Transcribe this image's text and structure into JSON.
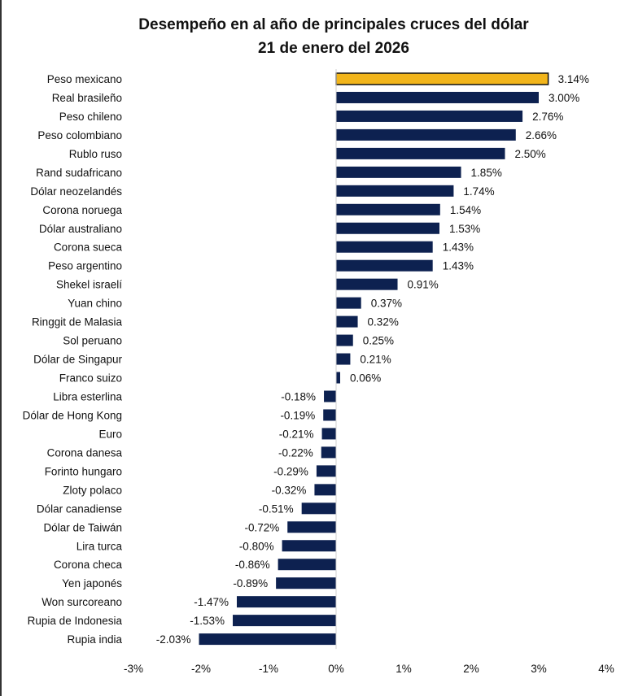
{
  "chart_data": {
    "type": "bar",
    "orientation": "horizontal",
    "title": "Desempeño en al año de principales cruces del dólar",
    "subtitle": "21 de enero del 2026",
    "xlabel": "",
    "ylabel": "",
    "xlim": [
      -3,
      4
    ],
    "xticks": [
      "-3%",
      "-2%",
      "-1%",
      "0%",
      "1%",
      "2%",
      "3%",
      "4%"
    ],
    "grid": false,
    "highlight_color": "#F2B51B",
    "bar_color": "#0D2150",
    "categories": [
      "Peso mexicano",
      "Real brasileño",
      "Peso chileno",
      "Peso colombiano",
      "Rublo ruso",
      "Rand sudafricano",
      "Dólar neozelandés",
      "Corona noruega",
      "Dólar australiano",
      "Corona sueca",
      "Peso argentino",
      "Shekel israelí",
      "Yuan chino",
      "Ringgit de Malasia",
      "Sol peruano",
      "Dólar de Singapur",
      "Franco suizo",
      "Libra esterlina",
      "Dólar de Hong Kong",
      "Euro",
      "Corona danesa",
      "Forinto hungaro",
      "Zloty polaco",
      "Dólar canadiense",
      "Dólar de Taiwán",
      "Lira turca",
      "Corona checa",
      "Yen japonés",
      "Won surcoreano",
      "Rupia de Indonesia",
      "Rupia india"
    ],
    "values": [
      3.14,
      3.0,
      2.76,
      2.66,
      2.5,
      1.85,
      1.74,
      1.54,
      1.53,
      1.43,
      1.43,
      0.91,
      0.37,
      0.32,
      0.25,
      0.21,
      0.06,
      -0.18,
      -0.19,
      -0.21,
      -0.22,
      -0.29,
      -0.32,
      -0.51,
      -0.72,
      -0.8,
      -0.86,
      -0.89,
      -1.47,
      -1.53,
      -2.03
    ],
    "labels": [
      "3.14%",
      "3.00%",
      "2.76%",
      "2.66%",
      "2.50%",
      "1.85%",
      "1.74%",
      "1.54%",
      "1.53%",
      "1.43%",
      "1.43%",
      "0.91%",
      "0.37%",
      "0.32%",
      "0.25%",
      "0.21%",
      "0.06%",
      "-0.18%",
      "-0.19%",
      "-0.21%",
      "-0.22%",
      "-0.29%",
      "-0.32%",
      "-0.51%",
      "-0.72%",
      "-0.80%",
      "-0.86%",
      "-0.89%",
      "-1.47%",
      "-1.53%",
      "-2.03%"
    ]
  }
}
